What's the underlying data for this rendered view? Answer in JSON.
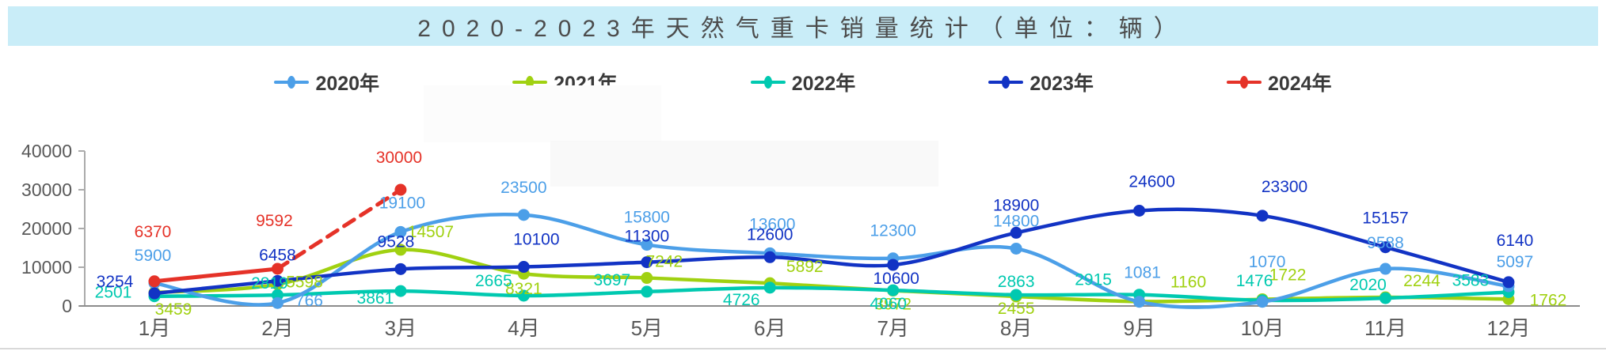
{
  "title_bar": {
    "text": "2020-2023年天然气重卡销量统计（单位：辆）"
  },
  "chart_data": {
    "type": "line",
    "title": "2020-2023年天然气重卡销量统计（单位：辆）",
    "unit": "辆",
    "categories": [
      "1月",
      "2月",
      "3月",
      "4月",
      "5月",
      "6月",
      "7月",
      "8月",
      "9月",
      "10月",
      "11月",
      "12月"
    ],
    "xlabel": "",
    "ylabel": "",
    "ylim": [
      0,
      40000
    ],
    "yticks": [
      0,
      10000,
      20000,
      30000,
      40000
    ],
    "grid": false,
    "legend_position": "top",
    "axis_color": "#ababab",
    "x_axis_color": "#8c8c8c",
    "tick_text_color": "#595959",
    "series": [
      {
        "name": "2020年",
        "color": "#4C9FE8",
        "values": [
          5900,
          766,
          19100,
          23500,
          15800,
          13600,
          12300,
          14800,
          1081,
          1070,
          9588,
          5097
        ],
        "label_offsets": [
          [
            -2,
            -28
          ],
          [
            40,
            4
          ],
          [
            2,
            -30
          ],
          [
            0,
            -28
          ],
          [
            0,
            -28
          ],
          [
            3,
            -30
          ],
          [
            0,
            -28
          ],
          [
            0,
            -28
          ],
          [
            4,
            -30
          ],
          [
            6,
            -44
          ],
          [
            0,
            -26
          ],
          [
            8,
            -24
          ]
        ]
      },
      {
        "name": "2021年",
        "color": "#A0D111",
        "values": [
          3459,
          5598,
          14507,
          8321,
          7242,
          5892,
          3972,
          2455,
          1160,
          1722,
          2244,
          1762
        ],
        "label_offsets": [
          [
            24,
            28
          ],
          [
            34,
            4
          ],
          [
            38,
            -16
          ],
          [
            0,
            26
          ],
          [
            22,
            -14
          ],
          [
            44,
            -14
          ],
          [
            0,
            24
          ],
          [
            0,
            22
          ],
          [
            62,
            -18
          ],
          [
            32,
            -24
          ],
          [
            46,
            -14
          ],
          [
            50,
            8
          ]
        ]
      },
      {
        "name": "2022年",
        "color": "#00C9B0",
        "values": [
          2501,
          2819,
          3861,
          2665,
          3697,
          4726,
          4060,
          2863,
          2915,
          1476,
          2020,
          3583
        ],
        "label_offsets": [
          [
            -52,
            2
          ],
          [
            -10,
            -8
          ],
          [
            -32,
            16
          ],
          [
            -38,
            -12
          ],
          [
            -44,
            -8
          ],
          [
            -36,
            22
          ],
          [
            -6,
            24
          ],
          [
            0,
            -10
          ],
          [
            -58,
            -12
          ],
          [
            -10,
            -18
          ],
          [
            -22,
            -10
          ],
          [
            -48,
            -8
          ]
        ]
      },
      {
        "name": "2023年",
        "color": "#1233C4",
        "values": [
          3254,
          6458,
          9528,
          10100,
          11300,
          12600,
          10600,
          18900,
          24600,
          23300,
          15157,
          6140
        ],
        "label_offsets": [
          [
            -50,
            -8
          ],
          [
            0,
            -26
          ],
          [
            -6,
            -28
          ],
          [
            16,
            -28
          ],
          [
            0,
            -26
          ],
          [
            0,
            -22
          ],
          [
            4,
            24
          ],
          [
            0,
            -28
          ],
          [
            16,
            -30
          ],
          [
            28,
            -30
          ],
          [
            0,
            -30
          ],
          [
            8,
            -46
          ]
        ]
      },
      {
        "name": "2024年",
        "color": "#E53228",
        "values": [
          6370,
          9592,
          30000
        ],
        "dashed_from": 1,
        "label_offsets": [
          [
            -2,
            -56
          ],
          [
            -4,
            -54
          ],
          [
            -2,
            -34
          ]
        ]
      }
    ]
  }
}
